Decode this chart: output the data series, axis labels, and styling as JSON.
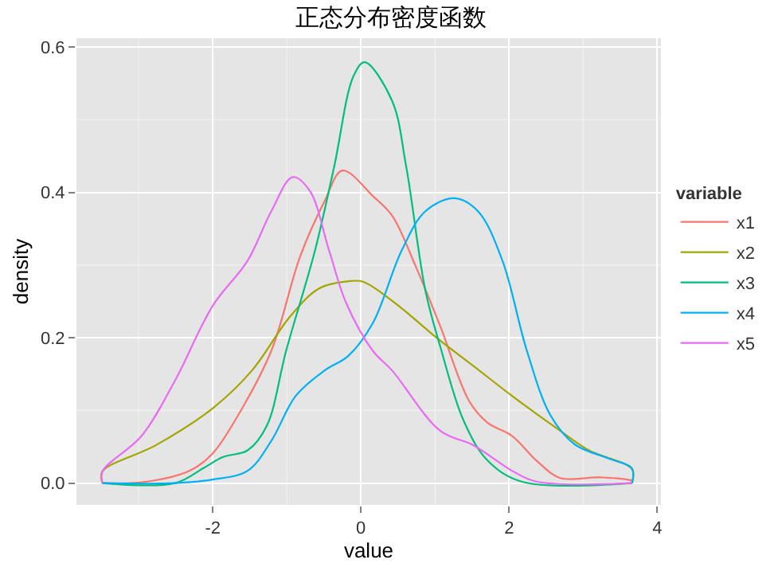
{
  "chart_data": {
    "type": "line",
    "title": "正态分布密度函数",
    "xlabel": "value",
    "ylabel": "density",
    "legend_title": "variable",
    "legend": "right",
    "grid": true,
    "marker": "none",
    "line_style": "solid",
    "xlim": [
      -3.84,
      4.05
    ],
    "ylim": [
      -0.03,
      0.612
    ],
    "xticks": [
      -2,
      0,
      2,
      4
    ],
    "yticks": [
      {
        "value": 0,
        "label": "0.0"
      },
      {
        "value": 0.2,
        "label": "0.2"
      },
      {
        "value": 0.4,
        "label": "0.4"
      },
      {
        "value": 0.6,
        "label": "0.6"
      }
    ],
    "series": [
      {
        "name": "x1",
        "color": "#f8766d",
        "x": [
          -3.49,
          -2.96,
          -2.31,
          -2.0,
          -1.66,
          -1.21,
          -0.82,
          -0.49,
          -0.25,
          0.16,
          0.42,
          0.74,
          1.07,
          1.46,
          1.71,
          2.04,
          2.37,
          2.69,
          3.21,
          3.66,
          3.66
        ],
        "values": [
          0.0,
          0.001,
          0.017,
          0.041,
          0.093,
          0.182,
          0.312,
          0.388,
          0.43,
          0.395,
          0.368,
          0.298,
          0.216,
          0.113,
          0.083,
          0.065,
          0.031,
          0.007,
          0.008,
          0.003,
          0.0
        ]
      },
      {
        "name": "x2",
        "color": "#a3a500",
        "x": [
          -3.49,
          -3.49,
          -2.77,
          -2.0,
          -1.47,
          -0.95,
          -0.56,
          -0.14,
          0.03,
          0.42,
          1.07,
          1.52,
          2.04,
          2.69,
          3.08,
          3.66,
          3.66
        ],
        "values": [
          0.0,
          0.016,
          0.052,
          0.103,
          0.155,
          0.23,
          0.268,
          0.278,
          0.277,
          0.251,
          0.196,
          0.161,
          0.12,
          0.072,
          0.045,
          0.019,
          0.0
        ]
      },
      {
        "name": "x3",
        "color": "#00bf7d",
        "x": [
          -3.49,
          -2.51,
          -2.12,
          -1.86,
          -1.53,
          -1.27,
          -1.01,
          -0.62,
          -0.36,
          -0.1,
          0.05,
          0.42,
          0.61,
          0.87,
          1.07,
          1.39,
          1.71,
          2.17,
          3.66
        ],
        "values": [
          0.0,
          0.0,
          0.021,
          0.036,
          0.045,
          0.079,
          0.182,
          0.32,
          0.436,
          0.56,
          0.579,
          0.526,
          0.436,
          0.265,
          0.188,
          0.085,
          0.031,
          0.002,
          0.0
        ]
      },
      {
        "name": "x4",
        "color": "#00b0f6",
        "x": [
          -3.49,
          -2.51,
          -2.0,
          -1.53,
          -1.21,
          -0.88,
          -0.49,
          -0.17,
          0.16,
          0.55,
          0.87,
          1.26,
          1.58,
          1.91,
          2.24,
          2.56,
          2.89,
          3.34,
          3.66,
          3.66
        ],
        "values": [
          0.0,
          0.0,
          0.005,
          0.017,
          0.058,
          0.12,
          0.155,
          0.175,
          0.22,
          0.32,
          0.374,
          0.392,
          0.374,
          0.306,
          0.182,
          0.093,
          0.053,
          0.034,
          0.02,
          0.0
        ]
      },
      {
        "name": "x5",
        "color": "#e76bf3",
        "x": [
          -3.49,
          -3.49,
          -2.96,
          -2.51,
          -2.0,
          -1.53,
          -1.21,
          -0.92,
          -0.69,
          -0.43,
          -0.2,
          0.16,
          0.42,
          1.07,
          1.52,
          2.04,
          2.37,
          3.66
        ],
        "values": [
          0.0,
          0.016,
          0.065,
          0.141,
          0.244,
          0.306,
          0.374,
          0.421,
          0.402,
          0.32,
          0.248,
          0.182,
          0.155,
          0.072,
          0.052,
          0.017,
          0.002,
          0.0
        ]
      }
    ]
  }
}
